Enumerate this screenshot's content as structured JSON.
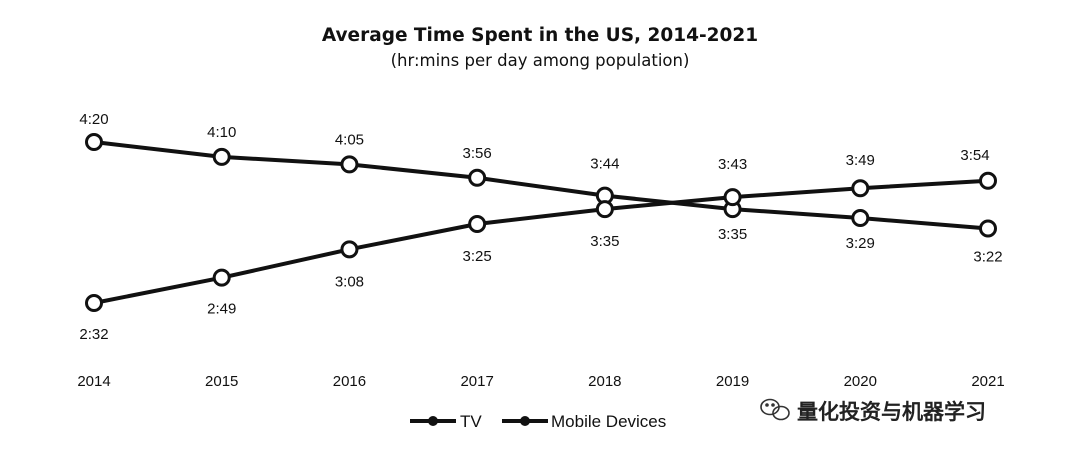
{
  "chart_data": {
    "type": "line",
    "title": "Average Time Spent in the US, 2014-2021",
    "subtitle": "(hr:mins per day among population)",
    "xlabel": "",
    "ylabel": "",
    "categories": [
      "2014",
      "2015",
      "2016",
      "2017",
      "2018",
      "2019",
      "2020",
      "2021"
    ],
    "series": [
      {
        "name": "TV",
        "color": "#111111",
        "values": [
          260,
          250,
          245,
          236,
          224,
          215,
          209,
          202
        ],
        "labels": [
          "4:20",
          "4:10",
          "4:05",
          "3:56",
          "3:44",
          "3:35",
          "3:29",
          "3:22"
        ]
      },
      {
        "name": "Mobile Devices",
        "color": "#111111",
        "values": [
          152,
          169,
          188,
          205,
          215,
          223,
          229,
          234
        ],
        "labels": [
          "2:32",
          "2:49",
          "3:08",
          "3:25",
          "3:35",
          "3:43",
          "3:49",
          "3:54"
        ]
      }
    ],
    "y_unit": "minutes per day",
    "grid": false,
    "legend_position": "bottom-center"
  },
  "watermark": {
    "icon": "wechat-icon",
    "text": "量化投资与机器学习"
  }
}
